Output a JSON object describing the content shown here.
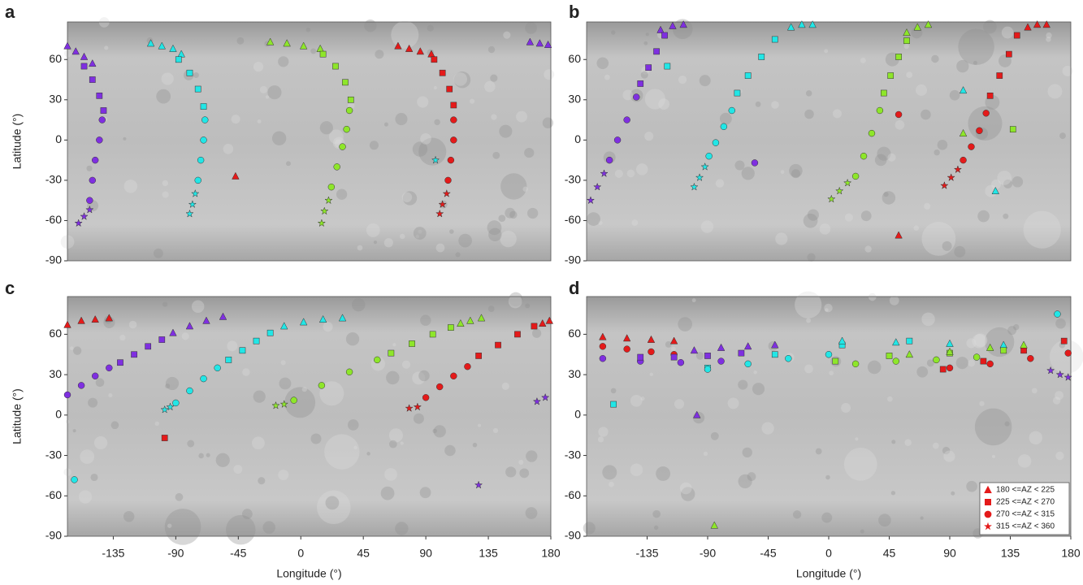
{
  "chart_data": [
    {
      "type": "scatter",
      "label": "a",
      "ylabel": "Latitude (°)",
      "xlim": [
        -168,
        180
      ],
      "ylim": [
        -90,
        88
      ],
      "yticks": [
        -90,
        -60,
        -30,
        0,
        30,
        60
      ],
      "series": [
        {
          "color": "#7f2fe0",
          "marker": "triangle",
          "x": [
            -168,
            -162,
            -156,
            -150
          ],
          "y": [
            70,
            66,
            62,
            57
          ]
        },
        {
          "color": "#7f2fe0",
          "marker": "triangle",
          "x": [
            165,
            172,
            178
          ],
          "y": [
            73,
            72,
            71
          ]
        },
        {
          "color": "#7f2fe0",
          "marker": "square",
          "x": [
            -156,
            -150,
            -145,
            -142
          ],
          "y": [
            55,
            45,
            33,
            22
          ]
        },
        {
          "color": "#7f2fe0",
          "marker": "circle",
          "x": [
            -143,
            -145,
            -148,
            -150,
            -152
          ],
          "y": [
            15,
            0,
            -15,
            -30,
            -45
          ]
        },
        {
          "color": "#7f2fe0",
          "marker": "star",
          "x": [
            -152,
            -156,
            -160
          ],
          "y": [
            -52,
            -57,
            -62
          ]
        },
        {
          "color": "#22e6e6",
          "marker": "triangle",
          "x": [
            -108,
            -100,
            -92,
            -86
          ],
          "y": [
            72,
            70,
            68,
            64
          ]
        },
        {
          "color": "#22e6e6",
          "marker": "square",
          "x": [
            -88,
            -80,
            -74,
            -70
          ],
          "y": [
            60,
            50,
            38,
            25
          ]
        },
        {
          "color": "#22e6e6",
          "marker": "circle",
          "x": [
            -69,
            -70,
            -72,
            -74
          ],
          "y": [
            15,
            0,
            -15,
            -30
          ]
        },
        {
          "color": "#22e6e6",
          "marker": "star",
          "x": [
            -76,
            -78,
            -80,
            97
          ],
          "y": [
            -40,
            -48,
            -55,
            -15
          ]
        },
        {
          "color": "#8ee62a",
          "marker": "triangle",
          "x": [
            -22,
            -10,
            2,
            14
          ],
          "y": [
            73,
            72,
            70,
            68
          ]
        },
        {
          "color": "#8ee62a",
          "marker": "square",
          "x": [
            16,
            25,
            32,
            36
          ],
          "y": [
            64,
            55,
            43,
            30
          ]
        },
        {
          "color": "#8ee62a",
          "marker": "circle",
          "x": [
            35,
            33,
            30,
            26,
            22
          ],
          "y": [
            22,
            8,
            -5,
            -20,
            -35
          ]
        },
        {
          "color": "#8ee62a",
          "marker": "star",
          "x": [
            20,
            17,
            15
          ],
          "y": [
            -45,
            -53,
            -62
          ]
        },
        {
          "color": "#e41a1a",
          "marker": "triangle",
          "x": [
            70,
            78,
            86,
            94,
            -47
          ],
          "y": [
            70,
            68,
            66,
            64,
            -27
          ]
        },
        {
          "color": "#e41a1a",
          "marker": "square",
          "x": [
            96,
            102,
            107,
            110
          ],
          "y": [
            60,
            50,
            38,
            26
          ]
        },
        {
          "color": "#e41a1a",
          "marker": "circle",
          "x": [
            110,
            110,
            108,
            106
          ],
          "y": [
            15,
            0,
            -15,
            -30
          ]
        },
        {
          "color": "#e41a1a",
          "marker": "star",
          "x": [
            105,
            102,
            100
          ],
          "y": [
            -40,
            -48,
            -55
          ]
        }
      ]
    },
    {
      "type": "scatter",
      "label": "b",
      "xlim": [
        -180,
        180
      ],
      "ylim": [
        -90,
        88
      ],
      "yticks": [
        -90,
        -60,
        -30,
        0,
        30,
        60
      ],
      "series": [
        {
          "color": "#7f2fe0",
          "marker": "triangle",
          "x": [
            -125,
            -116,
            -108
          ],
          "y": [
            82,
            85,
            86
          ]
        },
        {
          "color": "#7f2fe0",
          "marker": "square",
          "x": [
            -122,
            -128,
            -134,
            -140
          ],
          "y": [
            78,
            66,
            54,
            42
          ]
        },
        {
          "color": "#7f2fe0",
          "marker": "circle",
          "x": [
            -143,
            -150,
            -157,
            -163,
            -55
          ],
          "y": [
            32,
            15,
            0,
            -15,
            -17
          ]
        },
        {
          "color": "#7f2fe0",
          "marker": "star",
          "x": [
            -167,
            -172,
            -177
          ],
          "y": [
            -25,
            -35,
            -45
          ]
        },
        {
          "color": "#22e6e6",
          "marker": "triangle",
          "x": [
            -28,
            -20,
            -12,
            100,
            124
          ],
          "y": [
            84,
            86,
            86,
            37,
            -38
          ]
        },
        {
          "color": "#22e6e6",
          "marker": "square",
          "x": [
            -40,
            -50,
            -60,
            -68,
            -120
          ],
          "y": [
            75,
            62,
            48,
            35,
            55
          ]
        },
        {
          "color": "#22e6e6",
          "marker": "circle",
          "x": [
            -72,
            -78,
            -84,
            -89
          ],
          "y": [
            22,
            10,
            -2,
            -12
          ]
        },
        {
          "color": "#22e6e6",
          "marker": "star",
          "x": [
            -92,
            -96,
            -100
          ],
          "y": [
            -20,
            -28,
            -35
          ]
        },
        {
          "color": "#8ee62a",
          "marker": "triangle",
          "x": [
            58,
            66,
            74,
            100
          ],
          "y": [
            80,
            84,
            86,
            5
          ]
        },
        {
          "color": "#8ee62a",
          "marker": "square",
          "x": [
            58,
            52,
            46,
            41,
            137
          ],
          "y": [
            74,
            62,
            48,
            35,
            8
          ]
        },
        {
          "color": "#8ee62a",
          "marker": "circle",
          "x": [
            38,
            32,
            26,
            20
          ],
          "y": [
            22,
            5,
            -12,
            -27
          ]
        },
        {
          "color": "#8ee62a",
          "marker": "star",
          "x": [
            14,
            8,
            2
          ],
          "y": [
            -32,
            -38,
            -44
          ]
        },
        {
          "color": "#e41a1a",
          "marker": "triangle",
          "x": [
            148,
            155,
            162,
            52
          ],
          "y": [
            84,
            86,
            86,
            -71
          ]
        },
        {
          "color": "#e41a1a",
          "marker": "square",
          "x": [
            140,
            134,
            127,
            120
          ],
          "y": [
            78,
            64,
            48,
            33
          ]
        },
        {
          "color": "#e41a1a",
          "marker": "circle",
          "x": [
            117,
            112,
            106,
            100,
            52
          ],
          "y": [
            20,
            7,
            -5,
            -15,
            19
          ]
        },
        {
          "color": "#e41a1a",
          "marker": "star",
          "x": [
            96,
            91,
            86
          ],
          "y": [
            -22,
            -28,
            -34
          ]
        }
      ]
    },
    {
      "type": "scatter",
      "label": "c",
      "xlabel": "Longitude (°)",
      "ylabel": "Latitude (°)",
      "xlim": [
        -168,
        180
      ],
      "ylim": [
        -90,
        88
      ],
      "xticks": [
        -135,
        -90,
        -45,
        0,
        45,
        90,
        135,
        180
      ],
      "yticks": [
        -90,
        -60,
        -30,
        0,
        30,
        60
      ],
      "series": [
        {
          "color": "#e41a1a",
          "marker": "triangle",
          "x": [
            -168,
            -158,
            -148,
            -138
          ],
          "y": [
            67,
            70,
            71,
            72
          ]
        },
        {
          "color": "#7f2fe0",
          "marker": "circle",
          "x": [
            -168,
            -158,
            -148,
            -138
          ],
          "y": [
            15,
            22,
            29,
            35
          ]
        },
        {
          "color": "#7f2fe0",
          "marker": "square",
          "x": [
            -130,
            -120,
            -110,
            -100
          ],
          "y": [
            39,
            45,
            51,
            56
          ]
        },
        {
          "color": "#7f2fe0",
          "marker": "triangle",
          "x": [
            -92,
            -80,
            -68,
            -56
          ],
          "y": [
            61,
            66,
            70,
            73
          ]
        },
        {
          "color": "#7f2fe0",
          "marker": "star",
          "x": [
            170,
            176,
            128
          ],
          "y": [
            10,
            13,
            -52
          ]
        },
        {
          "color": "#22e6e6",
          "marker": "star",
          "x": [
            -98,
            -94
          ],
          "y": [
            4,
            6
          ]
        },
        {
          "color": "#22e6e6",
          "marker": "circle",
          "x": [
            -90,
            -80,
            -70,
            -60,
            -163
          ],
          "y": [
            9,
            18,
            27,
            35,
            -48
          ]
        },
        {
          "color": "#22e6e6",
          "marker": "square",
          "x": [
            -52,
            -42,
            -32,
            -22
          ],
          "y": [
            41,
            48,
            55,
            61
          ]
        },
        {
          "color": "#22e6e6",
          "marker": "triangle",
          "x": [
            -12,
            2,
            16,
            30
          ],
          "y": [
            66,
            69,
            71,
            72
          ]
        },
        {
          "color": "#8ee62a",
          "marker": "star",
          "x": [
            -18,
            -12
          ],
          "y": [
            7,
            8
          ]
        },
        {
          "color": "#8ee62a",
          "marker": "circle",
          "x": [
            -5,
            15,
            35,
            55
          ],
          "y": [
            11,
            22,
            32,
            41
          ]
        },
        {
          "color": "#8ee62a",
          "marker": "square",
          "x": [
            65,
            80,
            95,
            108
          ],
          "y": [
            46,
            53,
            60,
            65
          ]
        },
        {
          "color": "#8ee62a",
          "marker": "triangle",
          "x": [
            115,
            122,
            130
          ],
          "y": [
            68,
            70,
            72
          ]
        },
        {
          "color": "#e41a1a",
          "marker": "star",
          "x": [
            78,
            84
          ],
          "y": [
            5,
            6
          ]
        },
        {
          "color": "#e41a1a",
          "marker": "circle",
          "x": [
            90,
            100,
            110,
            120
          ],
          "y": [
            13,
            21,
            29,
            36
          ]
        },
        {
          "color": "#e41a1a",
          "marker": "square",
          "x": [
            128,
            142,
            156,
            168,
            -98
          ],
          "y": [
            44,
            52,
            60,
            66,
            -17
          ]
        },
        {
          "color": "#e41a1a",
          "marker": "triangle",
          "x": [
            174,
            179
          ],
          "y": [
            68,
            70
          ]
        }
      ]
    },
    {
      "type": "scatter",
      "label": "d",
      "xlabel": "Longitude (°)",
      "xlim": [
        -180,
        180
      ],
      "ylim": [
        -90,
        88
      ],
      "xticks": [
        -135,
        -90,
        -45,
        0,
        45,
        90,
        135,
        180
      ],
      "yticks": [
        -90,
        -60,
        -30,
        0,
        30,
        60
      ],
      "series": [
        {
          "color": "#e41a1a",
          "marker": "triangle",
          "x": [
            -168,
            -150,
            -132,
            -115
          ],
          "y": [
            58,
            57,
            56,
            55
          ]
        },
        {
          "color": "#e41a1a",
          "marker": "circle",
          "x": [
            -168,
            -150,
            -132,
            -115,
            90,
            120,
            150,
            178
          ],
          "y": [
            51,
            49,
            47,
            45,
            35,
            38,
            42,
            46
          ]
        },
        {
          "color": "#e41a1a",
          "marker": "square",
          "x": [
            85,
            115,
            145,
            175
          ],
          "y": [
            34,
            40,
            48,
            55
          ]
        },
        {
          "color": "#7f2fe0",
          "marker": "circle",
          "x": [
            -168,
            -140,
            -110,
            -80
          ],
          "y": [
            42,
            40,
            39,
            40
          ]
        },
        {
          "color": "#7f2fe0",
          "marker": "square",
          "x": [
            -140,
            -115,
            -90,
            -65
          ],
          "y": [
            43,
            43,
            44,
            46
          ]
        },
        {
          "color": "#7f2fe0",
          "marker": "triangle",
          "x": [
            -100,
            -80,
            -60,
            -40,
            -98
          ],
          "y": [
            48,
            50,
            51,
            52,
            0
          ]
        },
        {
          "color": "#7f2fe0",
          "marker": "star",
          "x": [
            165,
            172,
            178
          ],
          "y": [
            33,
            30,
            28
          ]
        },
        {
          "color": "#22e6e6",
          "marker": "square",
          "x": [
            -90,
            -40,
            10,
            60,
            -160
          ],
          "y": [
            35,
            45,
            52,
            55,
            8
          ]
        },
        {
          "color": "#22e6e6",
          "marker": "circle",
          "x": [
            -90,
            -60,
            -30,
            0,
            170
          ],
          "y": [
            34,
            38,
            42,
            45,
            75
          ]
        },
        {
          "color": "#22e6e6",
          "marker": "triangle",
          "x": [
            10,
            50,
            90,
            130
          ],
          "y": [
            55,
            54,
            53,
            52
          ]
        },
        {
          "color": "#8ee62a",
          "marker": "square",
          "x": [
            5,
            45,
            90,
            130
          ],
          "y": [
            40,
            44,
            46,
            48
          ]
        },
        {
          "color": "#8ee62a",
          "marker": "circle",
          "x": [
            20,
            50,
            80,
            110
          ],
          "y": [
            38,
            40,
            41,
            43
          ]
        },
        {
          "color": "#8ee62a",
          "marker": "triangle",
          "x": [
            60,
            90,
            120,
            145,
            -85
          ],
          "y": [
            45,
            47,
            50,
            52,
            -82
          ]
        }
      ],
      "legend": [
        {
          "label": "180 <=AZ < 225",
          "marker": "triangle",
          "color": "#e41a1a"
        },
        {
          "label": "225 <=AZ < 270",
          "marker": "square",
          "color": "#e41a1a"
        },
        {
          "label": "270 <=AZ < 315",
          "marker": "circle",
          "color": "#e41a1a"
        },
        {
          "label": "315 <=AZ < 360",
          "marker": "star",
          "color": "#e41a1a"
        }
      ]
    }
  ]
}
